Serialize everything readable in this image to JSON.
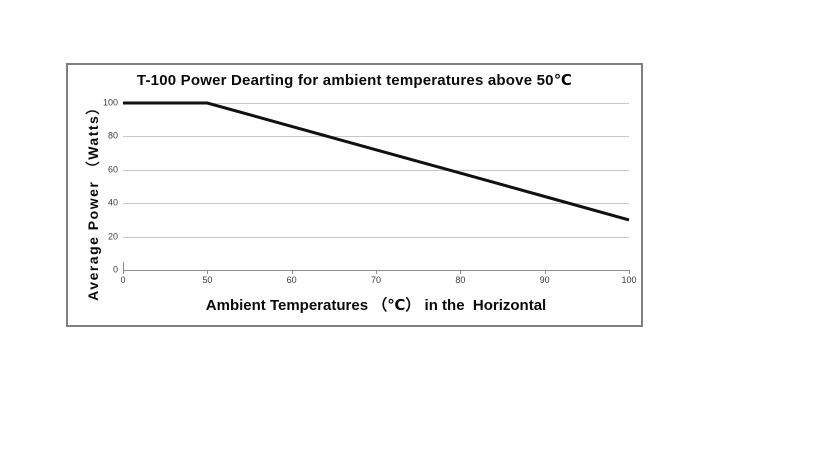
{
  "page": {
    "background": "#ffffff"
  },
  "chart_data": {
    "type": "line",
    "title": "T-100 Power Dearting for ambient temperatures above 50℃",
    "xlabel": "Ambient Temperatures （℃） in the  Horizontal",
    "ylabel": "Average Power （Watts）",
    "categories": [
      "0",
      "50",
      "60",
      "70",
      "80",
      "90",
      "100"
    ],
    "values": [
      100,
      100,
      86,
      72,
      58,
      44,
      30
    ],
    "series": [
      {
        "name": "Average Power (Watts)",
        "values": [
          100,
          100,
          86,
          72,
          58,
          44,
          30
        ]
      }
    ],
    "y_ticks": [
      0,
      20,
      40,
      60,
      80,
      100
    ],
    "ylim": [
      0,
      100
    ],
    "x_axis_note": "categorical axis: ticks 0,50,60,70,80,90,100 are equally spaced",
    "grid": true,
    "legend": false,
    "colors": {
      "line": "#111111",
      "grid": "#c8c8c8",
      "axis": "#8c8c8c",
      "tick_text": "#3c3c3c",
      "box_border": "#7f7f7f",
      "background": "#ffffff"
    }
  }
}
